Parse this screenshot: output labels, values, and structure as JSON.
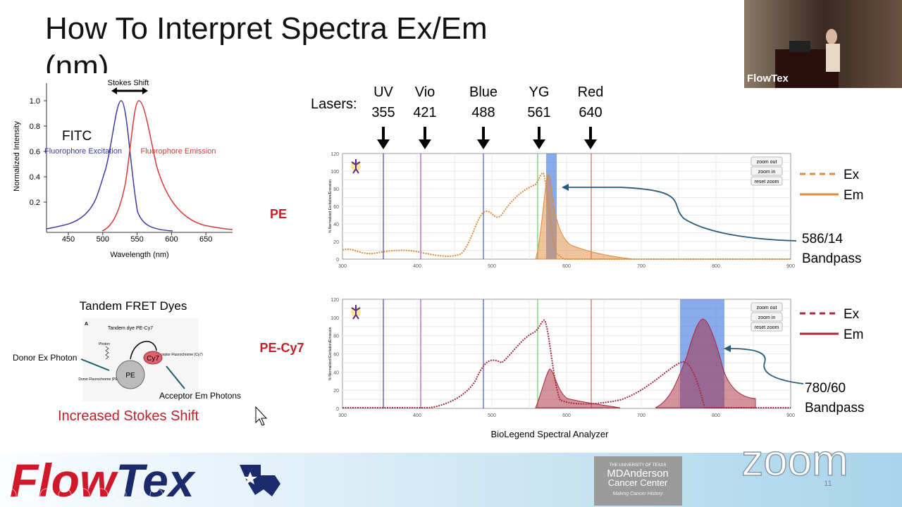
{
  "title": "How To Interpret Spectra Ex/Em (nm)",
  "webcam": {
    "label": "FlowTex"
  },
  "fitc": {
    "y_label": "Normalized Intensity",
    "x_label": "Wavelength (nm)",
    "yticks": [
      "1.0",
      "0.8",
      "0.6",
      "0.4",
      "0.2"
    ],
    "xticks": [
      "450",
      "500",
      "550",
      "600",
      "650"
    ],
    "stokes": "Stokes Shift",
    "dye": "FITC",
    "excitation": "Fluorophore Excitation",
    "emission": "Fluorophore Emission"
  },
  "lasers": {
    "label": "Lasers:",
    "items": [
      {
        "name": "UV",
        "nm": "355"
      },
      {
        "name": "Vio",
        "nm": "421"
      },
      {
        "name": "Blue",
        "nm": "488"
      },
      {
        "name": "YG",
        "nm": "561"
      },
      {
        "name": "Red",
        "nm": "640"
      }
    ]
  },
  "spectra_axes": {
    "y_label": "% Normalized Excitation/Emission",
    "yticks": [
      "0",
      "20",
      "40",
      "60",
      "80",
      "100",
      "120"
    ],
    "xticks": [
      "300",
      "400",
      "500",
      "600",
      "700",
      "800",
      "900"
    ],
    "buttons": [
      "zoom out",
      "zoom in",
      "reset zoom"
    ]
  },
  "pe": {
    "label": "PE",
    "legend": [
      "Ex",
      "Em"
    ],
    "filter": "586/14",
    "filter_label": "Bandpass"
  },
  "pe_cy7": {
    "label": "PE-Cy7",
    "legend": [
      "Ex",
      "Em"
    ],
    "filter": "780/60",
    "filter_label": "Bandpass"
  },
  "caption": "BioLegend Spectral Analyzer",
  "tandem": {
    "heading": "Tandem FRET Dyes",
    "panel": "A",
    "dye": "Tandem dye PE-Cy7",
    "photon": "Photon",
    "donor": "Donor Fluorochrome (PE)",
    "acceptor": "Acceptor Fluorochrome (Cy7)",
    "donor_node": "PE",
    "acceptor_node": "Cy7",
    "donor_photon": "Donor Ex Photon",
    "acceptor_photons": "Acceptor Em Photons",
    "shift": "Increased Stokes Shift"
  },
  "footer": {
    "logo": [
      "Flow",
      "Tex"
    ],
    "institution": [
      "THE UNIVERSITY OF TEXAS",
      "MDAnderson",
      "Cancer Center",
      "Making Cancer History"
    ],
    "app": "zoom",
    "page": "11"
  }
}
